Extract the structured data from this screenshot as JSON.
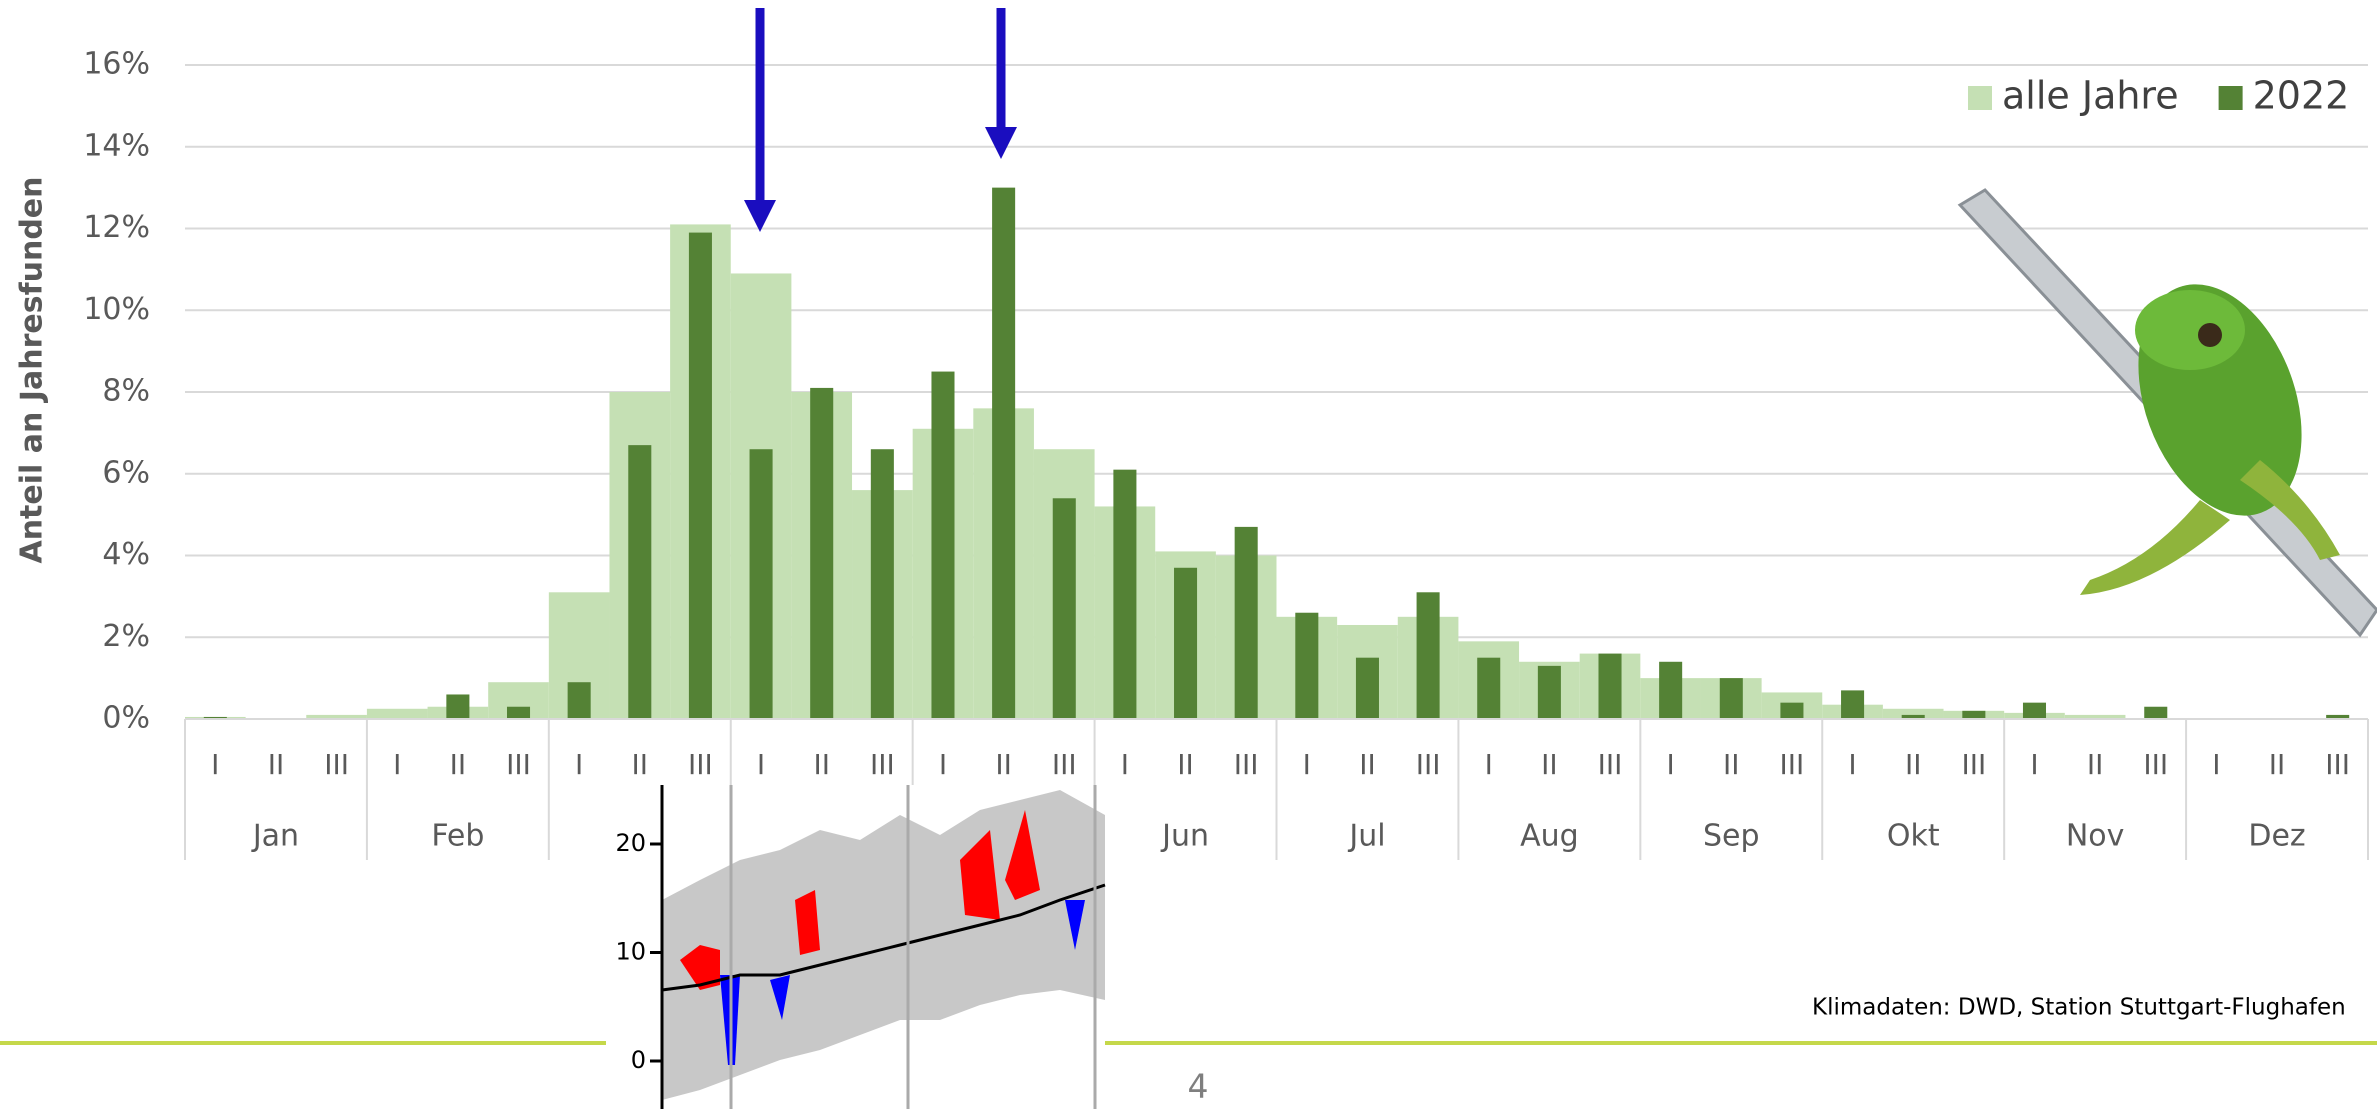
{
  "chart_data": {
    "type": "bar",
    "y_label": "Anteil an Jahresfunden",
    "categories": [
      "I",
      "II",
      "III",
      "I",
      "II",
      "III",
      "I",
      "II",
      "III",
      "I",
      "II",
      "III",
      "I",
      "II",
      "III",
      "I",
      "II",
      "III",
      "I",
      "II",
      "III",
      "I",
      "II",
      "III",
      "I",
      "II",
      "III",
      "I",
      "II",
      "III",
      "I",
      "II",
      "III",
      "I",
      "II",
      "III"
    ],
    "months": [
      "Jan",
      "Feb",
      null,
      null,
      null,
      "Jun",
      "Jul",
      "Aug",
      "Sep",
      "Okt",
      "Nov",
      "Dez"
    ],
    "series": [
      {
        "name": "alle Jahre",
        "color": "#c5e0b4",
        "values": [
          0.05,
          0,
          0.1,
          0.25,
          0.3,
          0.9,
          3.1,
          8.0,
          12.1,
          10.9,
          8.0,
          5.6,
          7.1,
          7.6,
          6.6,
          5.2,
          4.1,
          4.0,
          2.5,
          2.3,
          2.5,
          1.9,
          1.4,
          1.6,
          1.0,
          1.0,
          0.65,
          0.35,
          0.25,
          0.2,
          0.15,
          0.1,
          0,
          0,
          0,
          0
        ]
      },
      {
        "name": "2022",
        "color": "#548235",
        "values": [
          0.05,
          0,
          0,
          0,
          0.6,
          0.3,
          0.9,
          6.7,
          11.9,
          6.6,
          8.1,
          6.6,
          8.5,
          13.0,
          5.4,
          6.1,
          3.7,
          4.7,
          2.6,
          1.5,
          3.1,
          1.5,
          1.3,
          1.6,
          1.4,
          1.0,
          0.4,
          0.7,
          0.1,
          0.2,
          0.4,
          0,
          0.3,
          0,
          0,
          0.1
        ]
      }
    ],
    "ylim": [
      0,
      16
    ],
    "yticks": [
      {
        "value": 0,
        "label": "0%"
      },
      {
        "value": 2,
        "label": "2%"
      },
      {
        "value": 4,
        "label": "4%"
      },
      {
        "value": 6,
        "label": "6%"
      },
      {
        "value": 8,
        "label": "8%"
      },
      {
        "value": 10,
        "label": "10%"
      },
      {
        "value": 12,
        "label": "12%"
      },
      {
        "value": 14,
        "label": "14%"
      },
      {
        "value": 16,
        "label": "16%"
      }
    ],
    "grid": true,
    "legend": "top-right"
  },
  "inset": {
    "yticks": [
      0,
      10,
      20
    ],
    "ylim": [
      0,
      20
    ]
  },
  "footer": {
    "source": "Klimadaten: DWD, Station Stuttgart-Flughafen",
    "page": "4"
  }
}
